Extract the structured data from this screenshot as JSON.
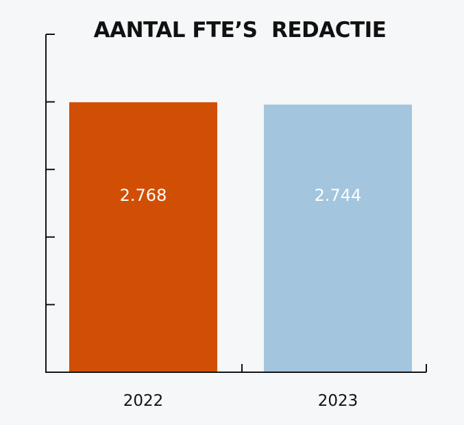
{
  "chart_data": {
    "type": "bar",
    "title": "AANTAL FTE’S  REDACTIE",
    "categories": [
      "2022",
      "2023"
    ],
    "values": [
      2768,
      2744
    ],
    "value_labels": [
      "2.768",
      "2.744"
    ],
    "colors": [
      "#d04f05",
      "#a3c5dd"
    ],
    "xlabel": "",
    "ylabel": "",
    "ylim": [
      0,
      3465
    ],
    "y_tick_step": 693,
    "y_tick_labels_shown": false,
    "grid": false,
    "legend": "none"
  },
  "colors": {
    "axis": "#111111",
    "value_label": "#ffffff",
    "category_label": "#111111"
  }
}
